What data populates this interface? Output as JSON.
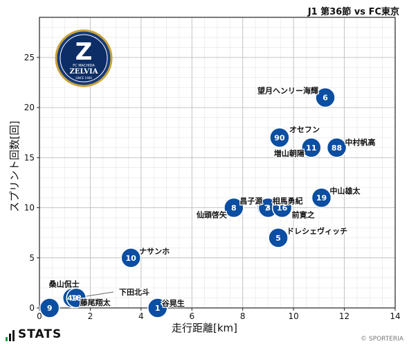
{
  "chart_data": {
    "type": "scatter",
    "title": "J1 第36節 vs FC東京",
    "xlabel": "走行距離[km]",
    "ylabel": "スプリント回数[回]",
    "xlim": [
      0,
      14
    ],
    "ylim": [
      0,
      29
    ],
    "xticks": [
      "0",
      "2",
      "4",
      "6",
      "8",
      "10",
      "12",
      "14"
    ],
    "yticks": [
      "0",
      "5",
      "10",
      "15",
      "20",
      "25"
    ],
    "grid": true,
    "marker_color": "#0b4ea2",
    "points": [
      {
        "number": "6",
        "name": "望月ヘンリー海輝",
        "x": 11.25,
        "y": 21
      },
      {
        "number": "90",
        "name": "オセフン",
        "x": 9.45,
        "y": 17
      },
      {
        "number": "11",
        "name": "増山朝陽",
        "x": 10.7,
        "y": 16
      },
      {
        "number": "88",
        "name": "中村帆高",
        "x": 11.7,
        "y": 16
      },
      {
        "number": "19",
        "name": "中山雄太",
        "x": 11.1,
        "y": 11
      },
      {
        "number": "8",
        "name": "仙頭啓矢",
        "x": 7.65,
        "y": 10
      },
      {
        "number": "7",
        "name": "相馬勇紀",
        "x": 8.95,
        "y": 10
      },
      {
        "number": "3",
        "name": "昌子源",
        "x": 9.0,
        "y": 10
      },
      {
        "number": "16",
        "name": "前寛之",
        "x": 9.55,
        "y": 10
      },
      {
        "number": "5",
        "name": "ドレシェヴィッチ",
        "x": 9.4,
        "y": 7
      },
      {
        "number": "10",
        "name": "ナサンホ",
        "x": 3.6,
        "y": 5
      },
      {
        "number": "49",
        "name": "桑山侃士",
        "x": 1.3,
        "y": 1
      },
      {
        "number": "18",
        "name": "下田北斗",
        "x": 1.45,
        "y": 1
      },
      {
        "number": "9",
        "name": "藤尾翔太",
        "x": 0.4,
        "y": 0
      },
      {
        "number": "1",
        "name": "谷晃生",
        "x": 4.65,
        "y": 0
      }
    ]
  },
  "logo": {
    "text_lines": [
      "FC MACHIDA",
      "ZELVIA",
      "SINCE 1989"
    ],
    "monogram": "Z"
  },
  "footer": {
    "brand": "STATS",
    "copyright": "© SPORTERIA"
  }
}
